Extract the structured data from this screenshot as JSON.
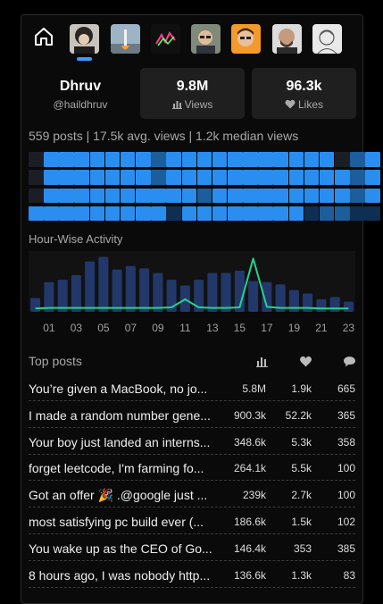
{
  "nav": {
    "avatars": [
      {
        "name": "avatar-curly-hair"
      },
      {
        "name": "avatar-rocket"
      },
      {
        "name": "avatar-neon"
      },
      {
        "name": "avatar-man-glasses"
      },
      {
        "name": "avatar-orange-portrait"
      },
      {
        "name": "avatar-bald-man"
      },
      {
        "name": "avatar-sketch"
      }
    ]
  },
  "profile": {
    "name": "Dhruv",
    "handle": "@haildhruv"
  },
  "stats": {
    "views": {
      "value": "9.8M",
      "label": "Views"
    },
    "likes": {
      "value": "96.3k",
      "label": "Likes"
    }
  },
  "summary": "559 posts | 17.5k avg. views | 1.2k median views",
  "activity_grid": {
    "colors": {
      "full": "#2a8ef0",
      "mid": "#1c5d9c",
      "low": "#0f2f52",
      "none": "#1b1f25"
    },
    "rows": [
      [
        "none",
        "full",
        "full",
        "full",
        "full",
        "full",
        "full",
        "full",
        "mid",
        "full",
        "full",
        "full",
        "full",
        "full",
        "full",
        "full",
        "full",
        "full",
        "full",
        "full",
        "none",
        "mid",
        "full"
      ],
      [
        "none",
        "full",
        "full",
        "full",
        "full",
        "full",
        "full",
        "full",
        "mid",
        "full",
        "full",
        "full",
        "full",
        "full",
        "full",
        "full",
        "full",
        "full",
        "full",
        "full",
        "full",
        "mid",
        "full"
      ],
      [
        "none",
        "full",
        "full",
        "full",
        "full",
        "full",
        "full",
        "full",
        "full",
        "full",
        "full",
        "mid",
        "full",
        "full",
        "full",
        "full",
        "full",
        "full",
        "full",
        "full",
        "full",
        "mid",
        "full"
      ],
      [
        "full",
        "full",
        "full",
        "full",
        "full",
        "full",
        "full",
        "full",
        "full",
        "low",
        "full",
        "full",
        "full",
        "full",
        "full",
        "full",
        "full",
        "full",
        "low",
        "mid",
        "mid",
        "low",
        "low"
      ]
    ]
  },
  "hour_chart": {
    "title": "Hour-Wise Activity",
    "chart_data": {
      "type": "bar",
      "categories": [
        "00",
        "01",
        "02",
        "03",
        "04",
        "05",
        "06",
        "07",
        "08",
        "09",
        "10",
        "11",
        "12",
        "13",
        "14",
        "15",
        "16",
        "17",
        "18",
        "19",
        "20",
        "21",
        "22",
        "23"
      ],
      "values": [
        24,
        52,
        56,
        64,
        88,
        96,
        74,
        80,
        76,
        68,
        56,
        46,
        56,
        68,
        68,
        72,
        54,
        52,
        48,
        38,
        32,
        22,
        26,
        18
      ],
      "line_values": [
        3,
        4,
        4,
        4,
        4,
        4,
        4,
        4,
        4,
        4,
        5,
        20,
        5,
        4,
        4,
        5,
        96,
        6,
        4,
        4,
        4,
        3,
        3,
        3
      ],
      "tick_labels": [
        "01",
        "03",
        "05",
        "07",
        "09",
        "11",
        "13",
        "15",
        "17",
        "19",
        "21",
        "23"
      ],
      "bar_color": "#22386b",
      "line_color": "#22d38e",
      "ylim": [
        0,
        100
      ]
    }
  },
  "top_posts": {
    "title": "Top posts",
    "rows": [
      {
        "title": "You’re given a MacBook, no jo...",
        "views": "5.8M",
        "likes": "1.9k",
        "replies": "665"
      },
      {
        "title": "I made a random number gene...",
        "views": "900.3k",
        "likes": "52.2k",
        "replies": "365"
      },
      {
        "title": "Your boy just landed an interns...",
        "views": "348.6k",
        "likes": "5.3k",
        "replies": "358"
      },
      {
        "title": "forget leetcode, I'm farming fo...",
        "views": "264.1k",
        "likes": "5.5k",
        "replies": "100"
      },
      {
        "title": "Got an offer 🎉 .@google just ...",
        "views": "239k",
        "likes": "2.7k",
        "replies": "100"
      },
      {
        "title": "most satisfying pc build ever (...",
        "views": "186.6k",
        "likes": "1.5k",
        "replies": "102"
      },
      {
        "title": "You wake up as the CEO of Go...",
        "views": "146.4k",
        "likes": "353",
        "replies": "385"
      },
      {
        "title": "8 hours ago, I was nobody http...",
        "views": "136.6k",
        "likes": "1.3k",
        "replies": "83"
      }
    ]
  }
}
